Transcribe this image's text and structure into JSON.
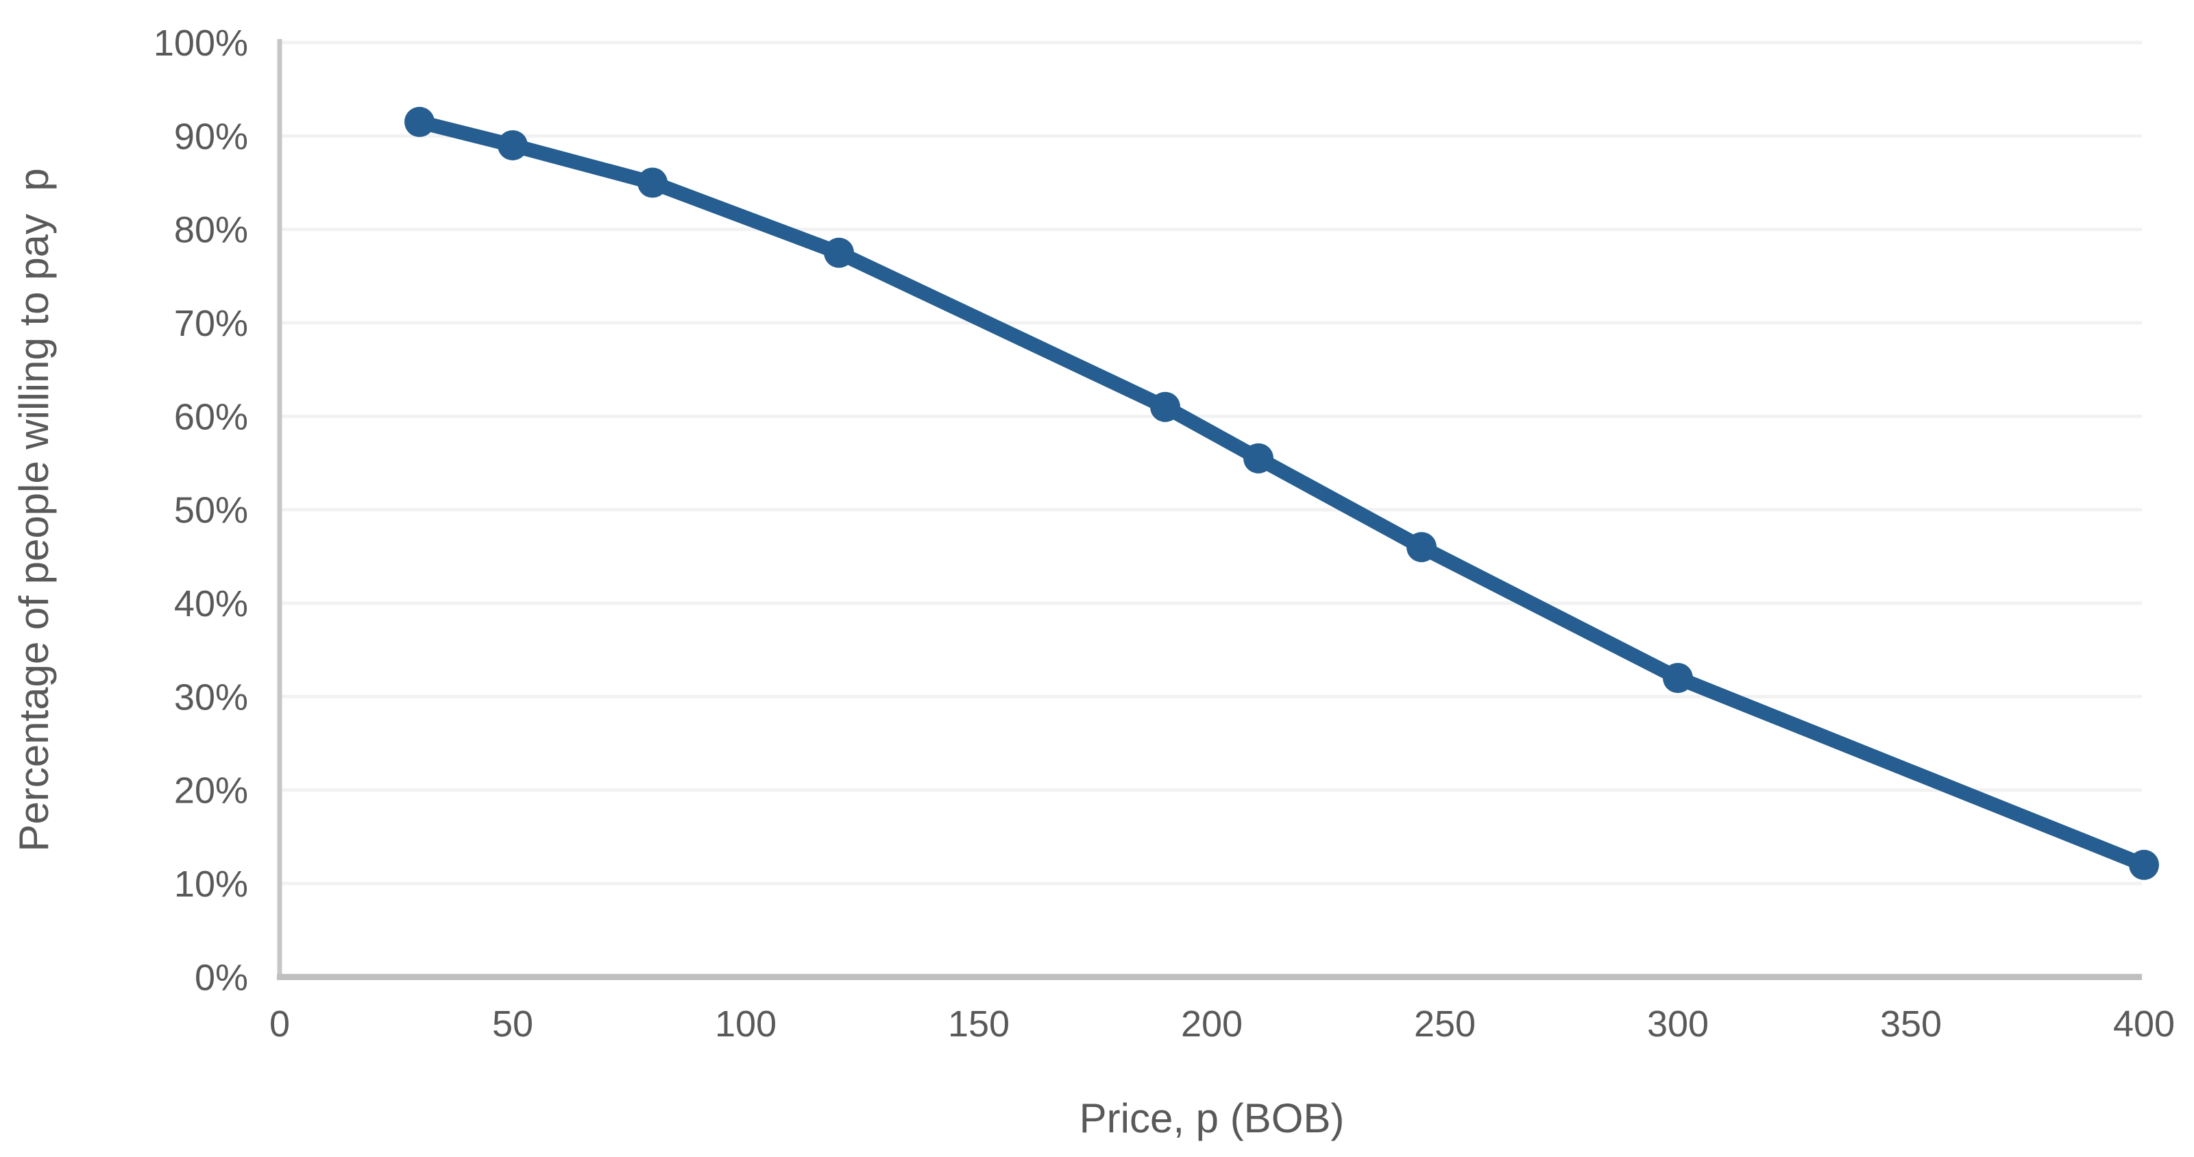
{
  "chart_data": {
    "type": "line",
    "title": "",
    "xlabel": "Price, p (BOB)",
    "ylabel": "Percentage of people willing to pay  p",
    "series": [
      {
        "name": "Percentage of people willing to pay p",
        "x": [
          30,
          50,
          80,
          120,
          190,
          210,
          245,
          300,
          400
        ],
        "y_percent": [
          91.5,
          89,
          85,
          77.5,
          61,
          55.5,
          46,
          32,
          12
        ]
      }
    ],
    "x_ticks": [
      0,
      50,
      100,
      150,
      200,
      250,
      300,
      350,
      400
    ],
    "y_ticks": [
      "0%",
      "10%",
      "20%",
      "30%",
      "40%",
      "50%",
      "60%",
      "70%",
      "80%",
      "90%",
      "100%"
    ],
    "xlim": [
      0,
      400
    ],
    "ylim": [
      "0%",
      "100%"
    ],
    "grid": "horizontal",
    "legend": "none",
    "marker": "circle",
    "colors": {
      "line": "#265E91",
      "marker": "#265E91",
      "grid": "#F2F2F2",
      "axis_line_left": "#C6C6C6",
      "axis_line_bottom": "#BFBFBF",
      "tick_text": "#595959",
      "background": "#FFFFFF"
    }
  }
}
